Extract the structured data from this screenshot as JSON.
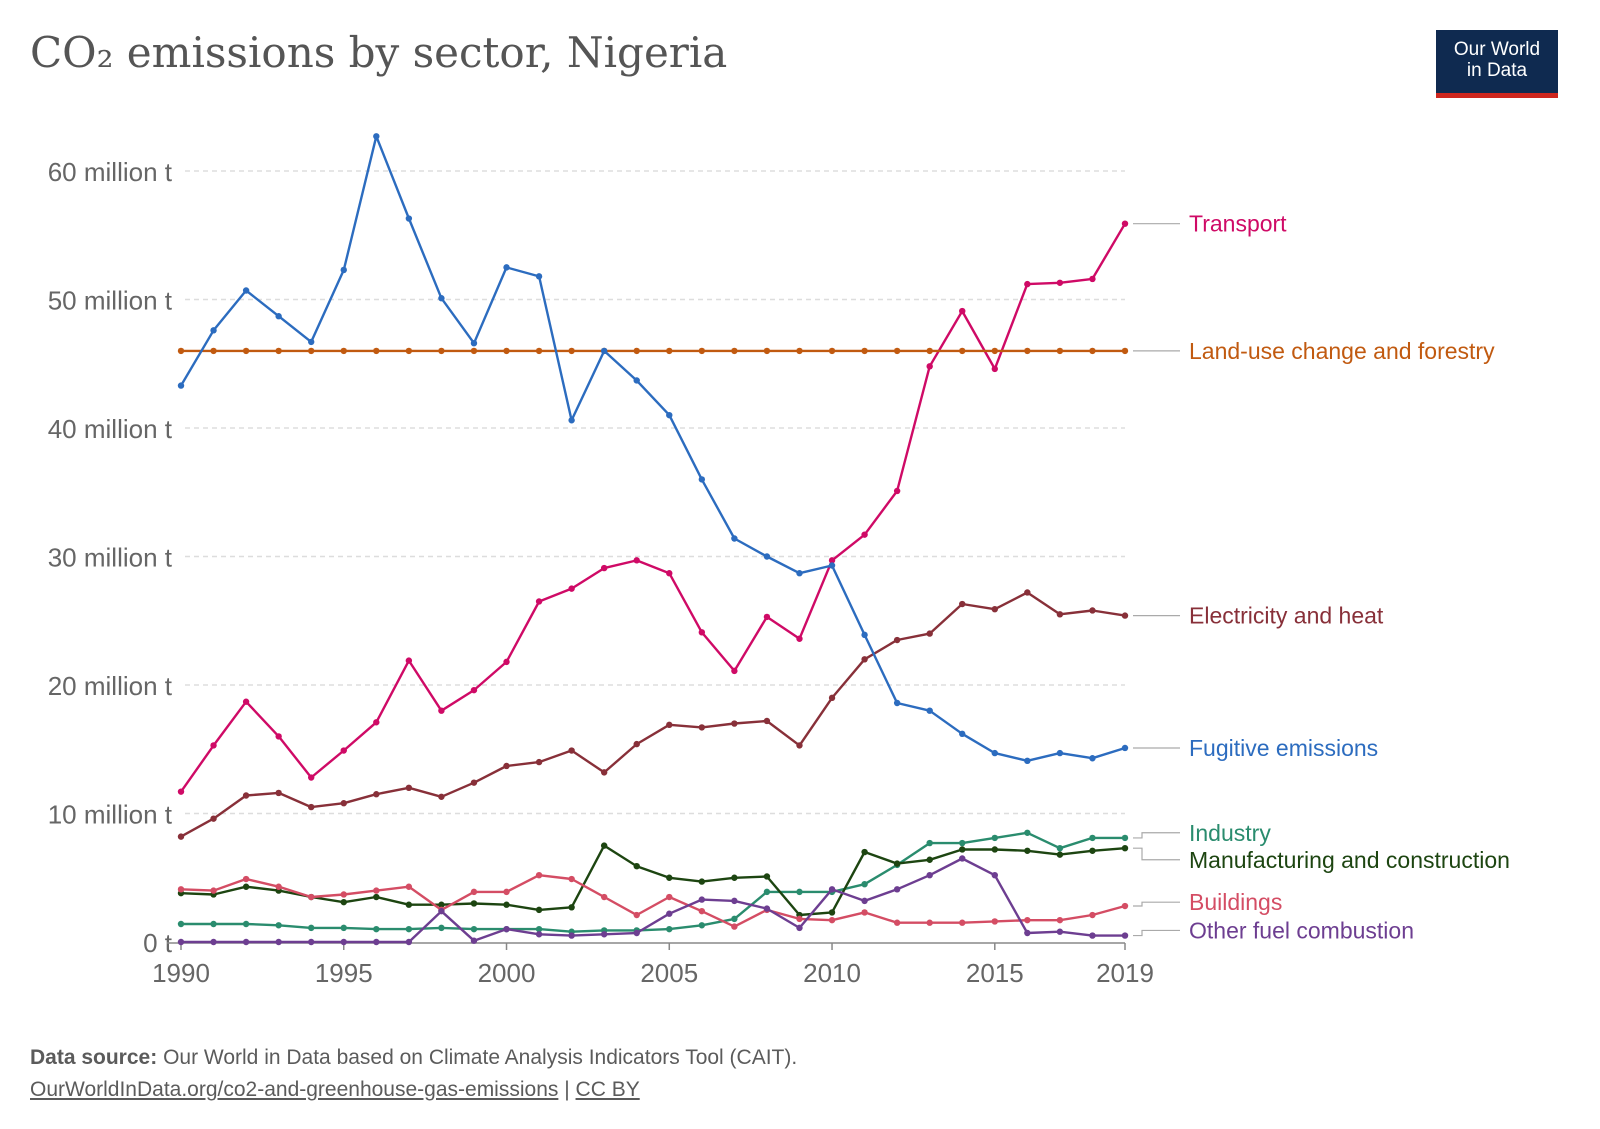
{
  "header": {
    "title": "CO₂ emissions by sector, Nigeria",
    "logo_line1": "Our World",
    "logo_line2": "in Data"
  },
  "footer": {
    "source_label": "Data source:",
    "source_text": "Our World in Data based on Climate Analysis Indicators Tool (CAIT).",
    "url": "OurWorldInData.org/co2-and-greenhouse-gas-emissions",
    "separator": "|",
    "license": "CC BY"
  },
  "chart_data": {
    "type": "line",
    "title": "CO₂ emissions by sector, Nigeria",
    "xlim": [
      1990,
      2019
    ],
    "ylim": [
      0,
      60
    ],
    "y_ticks": [
      {
        "value": 0,
        "label": "0 t"
      },
      {
        "value": 10,
        "label": "10 million t"
      },
      {
        "value": 20,
        "label": "20 million t"
      },
      {
        "value": 30,
        "label": "30 million t"
      },
      {
        "value": 40,
        "label": "40 million t"
      },
      {
        "value": 50,
        "label": "50 million t"
      },
      {
        "value": 60,
        "label": "60 million t"
      }
    ],
    "x_ticks": [
      1990,
      1995,
      2000,
      2005,
      2010,
      2015,
      2019
    ],
    "grid": "horizontal dashed",
    "legend": "right, labels at line ends",
    "x": [
      1990,
      1991,
      1992,
      1993,
      1994,
      1995,
      1996,
      1997,
      1998,
      1999,
      2000,
      2001,
      2002,
      2003,
      2004,
      2005,
      2006,
      2007,
      2008,
      2009,
      2010,
      2011,
      2012,
      2013,
      2014,
      2015,
      2016,
      2017,
      2018,
      2019
    ],
    "series": [
      {
        "name": "Transport",
        "color": "#cf0a66",
        "label_y": 55.9,
        "values": [
          11.7,
          15.3,
          18.7,
          16.0,
          12.8,
          14.9,
          17.1,
          21.9,
          18.0,
          19.6,
          21.8,
          26.5,
          27.5,
          29.1,
          29.7,
          28.7,
          24.1,
          21.1,
          25.3,
          23.6,
          29.7,
          31.7,
          35.1,
          44.8,
          49.1,
          44.6,
          51.2,
          51.3,
          51.6,
          55.9
        ]
      },
      {
        "name": "Land-use change and forestry",
        "color": "#c15a10",
        "label_y": 46.0,
        "values": [
          46,
          46,
          46,
          46,
          46,
          46,
          46,
          46,
          46,
          46,
          46,
          46,
          46,
          46,
          46,
          46,
          46,
          46,
          46,
          46,
          46,
          46,
          46,
          46,
          46,
          46,
          46,
          46,
          46,
          46
        ]
      },
      {
        "name": "Electricity and heat",
        "color": "#883039",
        "label_y": 25.4,
        "values": [
          8.2,
          9.6,
          11.4,
          11.6,
          10.5,
          10.8,
          11.5,
          12.0,
          11.3,
          12.4,
          13.7,
          14.0,
          14.9,
          13.2,
          15.4,
          16.9,
          16.7,
          17.0,
          17.2,
          15.3,
          19.0,
          22.0,
          23.5,
          24.0,
          26.3,
          25.9,
          27.2,
          25.5,
          25.8,
          25.4
        ]
      },
      {
        "name": "Fugitive emissions",
        "color": "#2c6cbf",
        "label_y": 15.1,
        "values": [
          43.3,
          47.6,
          50.7,
          48.7,
          46.7,
          52.3,
          62.7,
          56.3,
          50.1,
          46.6,
          52.5,
          51.8,
          40.6,
          46.0,
          43.7,
          41.0,
          36.0,
          31.4,
          30.0,
          28.7,
          29.3,
          23.9,
          18.6,
          18.0,
          16.2,
          14.7,
          14.1,
          14.7,
          14.3,
          15.1
        ]
      },
      {
        "name": "Industry",
        "color": "#2a8c6e",
        "label_y": 8.5,
        "values": [
          1.4,
          1.4,
          1.4,
          1.3,
          1.1,
          1.1,
          1.0,
          1.0,
          1.1,
          1.0,
          1.0,
          1.0,
          0.8,
          0.9,
          0.9,
          1.0,
          1.3,
          1.8,
          3.9,
          3.9,
          3.9,
          4.5,
          6.0,
          7.7,
          7.7,
          8.1,
          8.5,
          7.3,
          8.1,
          8.1
        ]
      },
      {
        "name": "Manufacturing and construction",
        "color": "#1d4511",
        "label_y": 6.4,
        "values": [
          3.8,
          3.7,
          4.3,
          4.0,
          3.5,
          3.1,
          3.5,
          2.9,
          2.9,
          3.0,
          2.9,
          2.5,
          2.7,
          7.5,
          5.9,
          5.0,
          4.7,
          5.0,
          5.1,
          2.1,
          2.3,
          7.0,
          6.1,
          6.4,
          7.2,
          7.2,
          7.1,
          6.8,
          7.1,
          7.3
        ]
      },
      {
        "name": "Buildings",
        "color": "#d44d64",
        "label_y": 3.1,
        "values": [
          4.1,
          4.0,
          4.9,
          4.3,
          3.5,
          3.7,
          4.0,
          4.3,
          2.5,
          3.9,
          3.9,
          5.2,
          4.9,
          3.5,
          2.1,
          3.5,
          2.4,
          1.2,
          2.5,
          1.8,
          1.7,
          2.3,
          1.5,
          1.5,
          1.5,
          1.6,
          1.7,
          1.7,
          2.1,
          2.8
        ]
      },
      {
        "name": "Other fuel combustion",
        "color": "#6d3e91",
        "label_y": 0.9,
        "values": [
          0,
          0,
          0,
          0,
          0,
          0,
          0,
          0,
          2.4,
          0.1,
          1.0,
          0.6,
          0.5,
          0.6,
          0.7,
          2.2,
          3.3,
          3.2,
          2.6,
          1.1,
          4.1,
          3.2,
          4.1,
          5.2,
          6.5,
          5.2,
          0.7,
          0.8,
          0.5,
          0.5
        ]
      }
    ]
  }
}
